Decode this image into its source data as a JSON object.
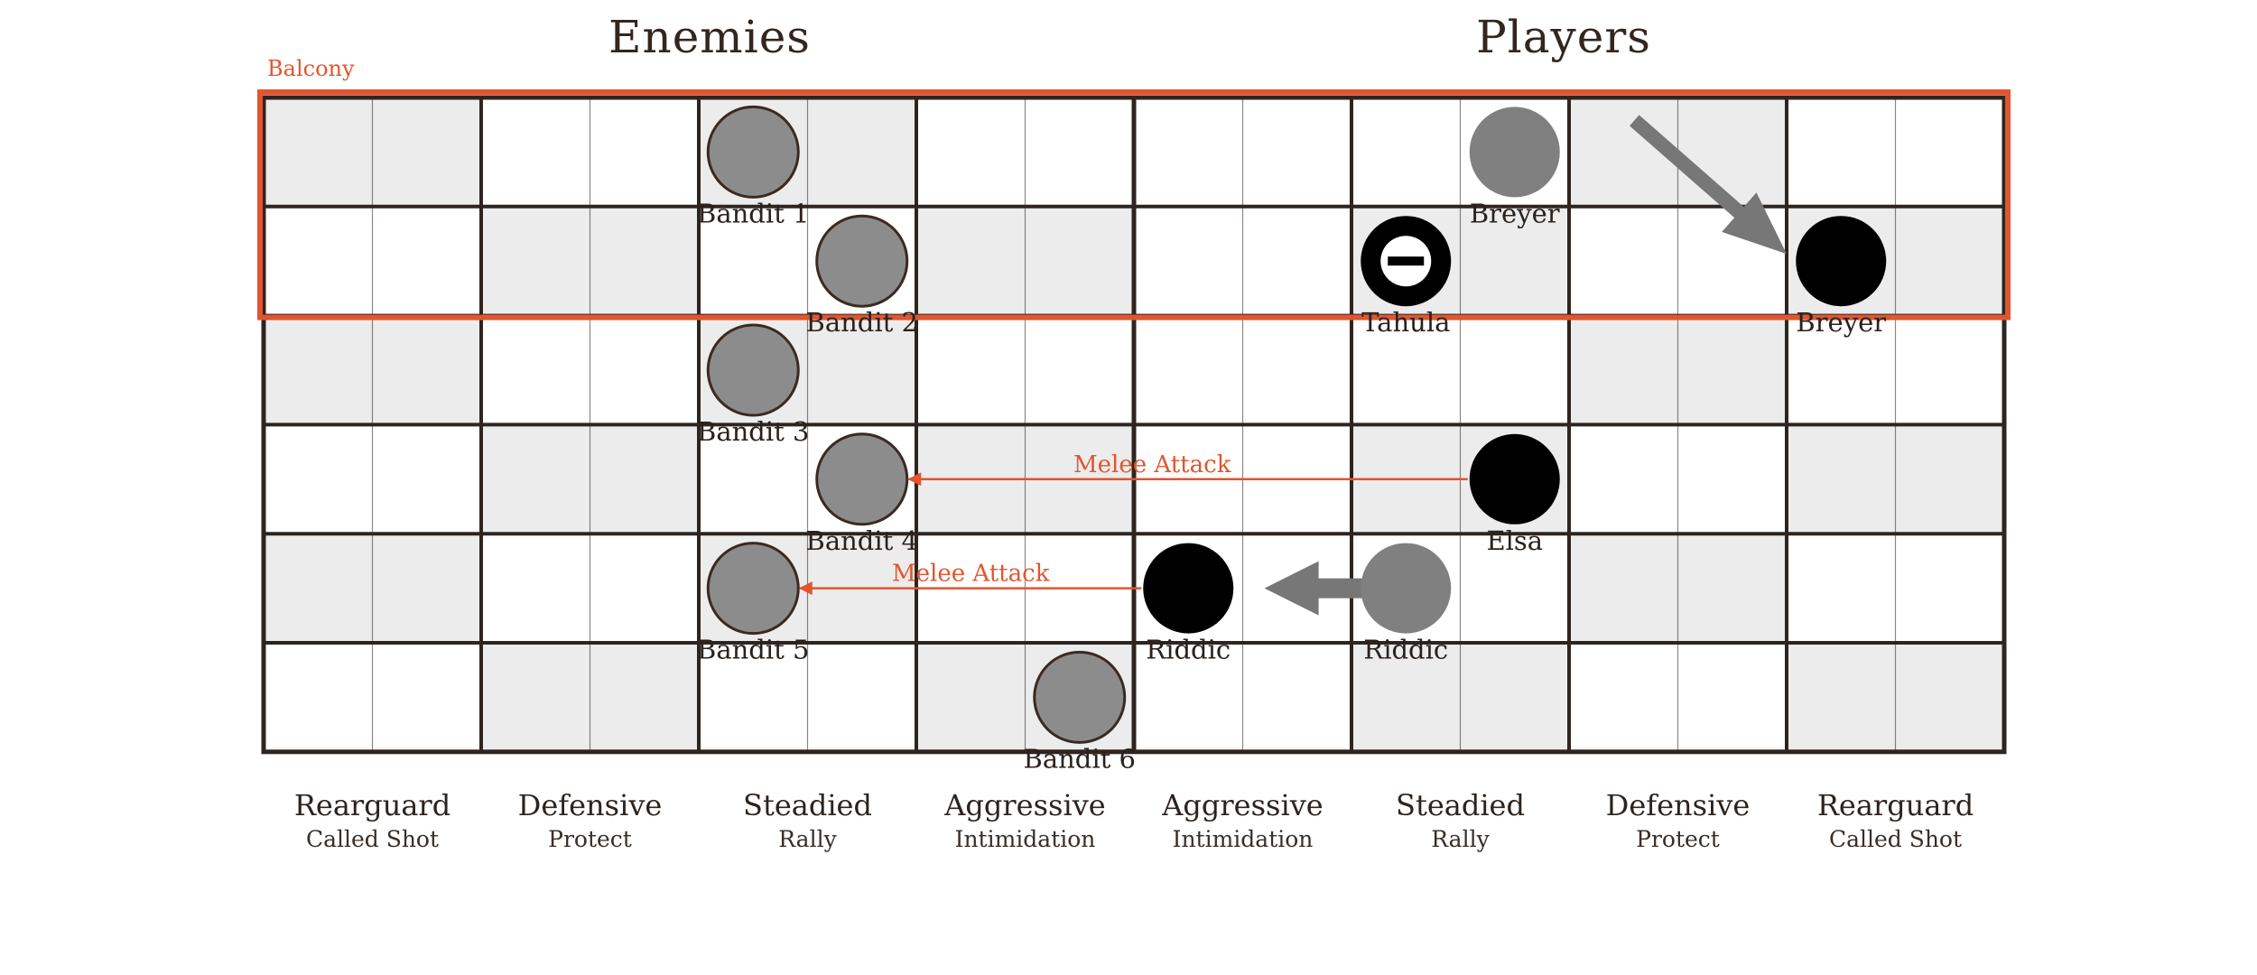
{
  "titles": {
    "left": "Enemies",
    "right": "Players"
  },
  "zone": {
    "label": "Balcony",
    "color": "#e2552f"
  },
  "grid": {
    "rows": 6,
    "cols": 16,
    "light_fill": "#ececec",
    "line_color": "#2e2520",
    "shaded_rows_a": [
      0,
      2,
      4
    ],
    "shaded_cols_a": [
      0,
      1,
      4,
      5,
      12,
      13
    ],
    "shaded_cols_b": [
      2,
      3,
      6,
      7,
      10,
      11,
      14,
      15
    ],
    "shaded_rows_b": [
      1,
      3,
      5
    ]
  },
  "tokens": [
    {
      "name": "bandit-1",
      "label": "Bandit 1",
      "row": 0,
      "col": 4.5,
      "style": "enemy",
      "label_pos": "below"
    },
    {
      "name": "bandit-2",
      "label": "Bandit 2",
      "row": 1,
      "col": 5.5,
      "style": "enemy",
      "label_pos": "below"
    },
    {
      "name": "bandit-3",
      "label": "Bandit 3",
      "row": 2,
      "col": 4.5,
      "style": "enemy",
      "label_pos": "below"
    },
    {
      "name": "bandit-4",
      "label": "Bandit 4",
      "row": 3,
      "col": 5.5,
      "style": "enemy",
      "label_pos": "below"
    },
    {
      "name": "bandit-5",
      "label": "Bandit 5",
      "row": 4,
      "col": 4.5,
      "style": "enemy",
      "label_pos": "below"
    },
    {
      "name": "bandit-6",
      "label": "Bandit 6",
      "row": 5,
      "col": 7.5,
      "style": "enemy",
      "label_pos": "below"
    },
    {
      "name": "breyer-start",
      "label": "Breyer",
      "row": 0,
      "col": 11.5,
      "style": "ghost",
      "label_pos": "below"
    },
    {
      "name": "breyer",
      "label": "Breyer",
      "row": 1,
      "col": 14.5,
      "style": "player",
      "label_pos": "below"
    },
    {
      "name": "tahula",
      "label": "Tahula",
      "row": 1,
      "col": 10.5,
      "style": "disabled",
      "label_pos": "below"
    },
    {
      "name": "elsa",
      "label": "Elsa",
      "row": 3,
      "col": 11.5,
      "style": "player",
      "label_pos": "below"
    },
    {
      "name": "riddic",
      "label": "Riddic",
      "row": 4,
      "col": 8.5,
      "style": "player",
      "label_pos": "below"
    },
    {
      "name": "riddic-start",
      "label": "Riddic",
      "row": 4,
      "col": 10.5,
      "style": "ghost",
      "label_pos": "below"
    }
  ],
  "attacks": [
    {
      "label": "Melee Attack",
      "from": {
        "row": 3,
        "col": 11.5
      },
      "to": {
        "row": 3,
        "col": 5.5
      }
    },
    {
      "label": "Melee Attack",
      "from": {
        "row": 4,
        "col": 8.5
      },
      "to": {
        "row": 4,
        "col": 4.5
      }
    }
  ],
  "moves": [
    {
      "from": {
        "row": 0,
        "col": 12.6
      },
      "to": {
        "row": 1,
        "col": 14.0
      }
    },
    {
      "from": {
        "row": 4,
        "col": 10.2
      },
      "to": {
        "row": 4,
        "col": 9.2
      }
    }
  ],
  "columns": [
    {
      "stance": "Rearguard",
      "action": "Called Shot"
    },
    {
      "stance": "Defensive",
      "action": "Protect"
    },
    {
      "stance": "Steadied",
      "action": "Rally"
    },
    {
      "stance": "Aggressive",
      "action": "Intimidation"
    },
    {
      "stance": "Aggressive",
      "action": "Intimidation"
    },
    {
      "stance": "Steadied",
      "action": "Rally"
    },
    {
      "stance": "Defensive",
      "action": "Protect"
    },
    {
      "stance": "Rearguard",
      "action": "Called Shot"
    }
  ],
  "colors": {
    "enemy_fill": "#8c8c8c",
    "ghost_fill": "#808080",
    "player_fill": "#000000",
    "arrow_gray": "#777777",
    "attack_red": "#e2552f"
  }
}
